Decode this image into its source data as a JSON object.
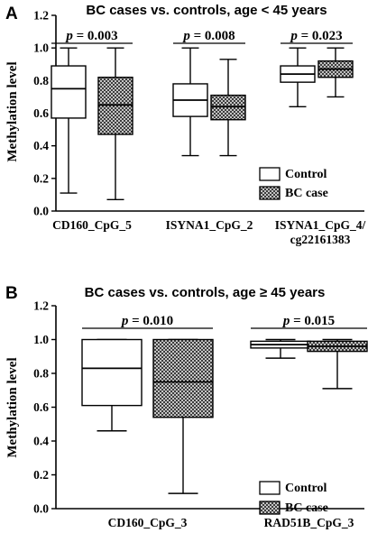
{
  "chart_data": [
    {
      "type": "box",
      "panel_label": "A",
      "title": "BC cases vs. controls, age < 45 years",
      "ylabel": "Methylation level",
      "ylim": [
        0,
        1.2
      ],
      "yticks": [
        "0.0",
        "0.2",
        "0.4",
        "0.6",
        "0.8",
        "1.0",
        "1.2"
      ],
      "legend_position": "bottom-right",
      "legend": [
        {
          "name": "Control",
          "fill": "white"
        },
        {
          "name": "BC case",
          "fill": "hatched"
        }
      ],
      "groups": [
        {
          "label": "CD160_CpG_5",
          "p_value": "p = 0.003",
          "boxes": [
            {
              "series": "Control",
              "min": 0.11,
              "q1": 0.57,
              "median": 0.75,
              "q3": 0.89,
              "max": 1.0
            },
            {
              "series": "BC case",
              "min": 0.07,
              "q1": 0.47,
              "median": 0.65,
              "q3": 0.82,
              "max": 1.0
            }
          ]
        },
        {
          "label": "ISYNA1_CpG_2",
          "p_value": "p = 0.008",
          "boxes": [
            {
              "series": "Control",
              "min": 0.34,
              "q1": 0.58,
              "median": 0.68,
              "q3": 0.78,
              "max": 1.0
            },
            {
              "series": "BC case",
              "min": 0.34,
              "q1": 0.56,
              "median": 0.64,
              "q3": 0.71,
              "max": 0.93
            }
          ]
        },
        {
          "label_lines": [
            "ISYNA1_CpG_4/",
            "cg22161383"
          ],
          "p_value": "p = 0.023",
          "boxes": [
            {
              "series": "Control",
              "min": 0.64,
              "q1": 0.79,
              "median": 0.84,
              "q3": 0.89,
              "max": 1.0
            },
            {
              "series": "BC case",
              "min": 0.7,
              "q1": 0.82,
              "median": 0.87,
              "q3": 0.92,
              "max": 1.0
            }
          ]
        }
      ]
    },
    {
      "type": "box",
      "panel_label": "B",
      "title": "BC cases vs. controls, age ≥ 45 years",
      "ylabel": "Methylation level",
      "ylim": [
        0,
        1.2
      ],
      "yticks": [
        "0.0",
        "0.2",
        "0.4",
        "0.6",
        "0.8",
        "1.0",
        "1.2"
      ],
      "legend_position": "bottom-right",
      "legend": [
        {
          "name": "Control",
          "fill": "white"
        },
        {
          "name": "BC case",
          "fill": "hatched"
        }
      ],
      "groups": [
        {
          "label": "CD160_CpG_3",
          "p_value": "p = 0.010",
          "boxes": [
            {
              "series": "Control",
              "min": 0.46,
              "q1": 0.61,
              "median": 0.83,
              "q3": 1.0,
              "max": 1.0
            },
            {
              "series": "BC case",
              "min": 0.09,
              "q1": 0.54,
              "median": 0.75,
              "q3": 1.0,
              "max": 1.0
            }
          ]
        },
        {
          "label": "RAD51B_CpG_3",
          "p_value": "p = 0.015",
          "boxes": [
            {
              "series": "Control",
              "min": 0.89,
              "q1": 0.95,
              "median": 0.97,
              "q3": 0.99,
              "max": 1.0
            },
            {
              "series": "BC case",
              "min": 0.71,
              "q1": 0.93,
              "median": 0.96,
              "q3": 0.99,
              "max": 1.0
            }
          ]
        }
      ]
    }
  ]
}
